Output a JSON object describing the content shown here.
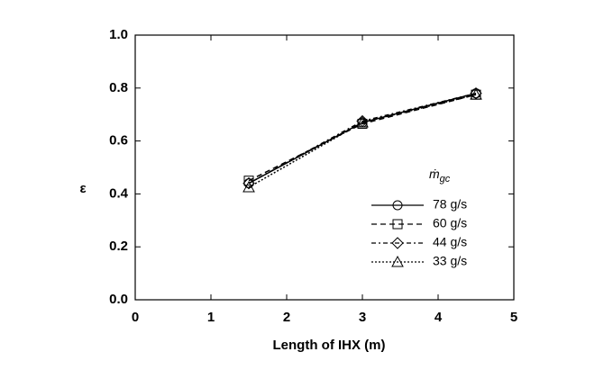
{
  "chart_data": {
    "type": "line",
    "x_label": "Length  of IHX (m)",
    "y_label": "ε",
    "legend_title": {
      "symbol": "ṁ",
      "subscript": "gc"
    },
    "x": [
      1.5,
      3,
      4.5
    ],
    "series": [
      {
        "name": "78 g/s",
        "color": "#000000",
        "marker": "circle",
        "dash": "none",
        "values": [
          0.44,
          0.67,
          0.78
        ]
      },
      {
        "name": "60 g/s",
        "color": "#000000",
        "marker": "square",
        "dash": "6,4",
        "values": [
          0.45,
          0.665,
          0.775
        ]
      },
      {
        "name": "44 g/s",
        "color": "#000000",
        "marker": "diamond",
        "dash": "5,3,2,3",
        "values": [
          0.44,
          0.675,
          0.78
        ]
      },
      {
        "name": "33 g/s",
        "color": "#000000",
        "marker": "triangle",
        "dash": "2,2",
        "values": [
          0.425,
          0.67,
          0.775
        ]
      }
    ],
    "xlim": [
      0,
      5
    ],
    "xticks": [
      0,
      1,
      2,
      3,
      4,
      5
    ],
    "ylim": [
      0,
      1
    ],
    "yticks": [
      {
        "value": 0,
        "label": "0.0"
      },
      0.2,
      0.4,
      0.6,
      0.8,
      {
        "value": 1,
        "label": "1.0"
      }
    ],
    "grid": false
  }
}
